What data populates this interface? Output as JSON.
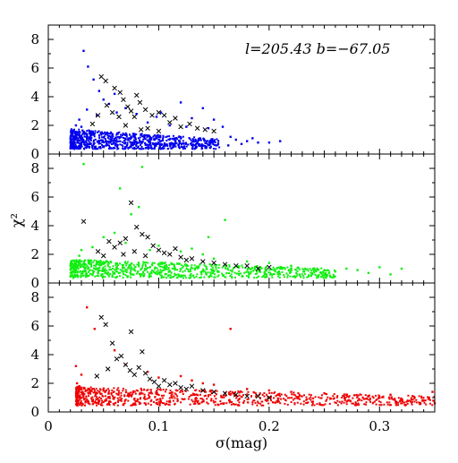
{
  "chart_data": {
    "type": "scatter",
    "layout": "three vertically stacked panels sharing the x axis",
    "annotation": "l=205.43  b=−67.05",
    "xlabel": "σ(mag)",
    "ylabel": "χ²",
    "xlim": [
      0,
      0.35
    ],
    "ylim": [
      0,
      9
    ],
    "xticks": [
      0,
      0.1,
      0.2,
      0.3
    ],
    "xtick_labels": [
      "0",
      "0.1",
      "0.2",
      "0.3"
    ],
    "yticks": [
      0,
      2,
      4,
      6,
      8
    ],
    "ytick_labels": [
      "0",
      "2",
      "4",
      "6",
      "8"
    ],
    "grid": false,
    "panels": [
      {
        "color": "#0000ee",
        "point_marker": "dot",
        "dense_band": {
          "x": [
            0.02,
            0.155
          ],
          "y": [
            0.2,
            1.6
          ]
        },
        "points": [
          [
            0.032,
            7.2
          ],
          [
            0.036,
            6.1
          ],
          [
            0.041,
            5.2
          ],
          [
            0.046,
            4.4
          ],
          [
            0.05,
            3.8
          ],
          [
            0.028,
            2.4
          ],
          [
            0.035,
            3.1
          ],
          [
            0.055,
            3.5
          ],
          [
            0.062,
            2.9
          ],
          [
            0.07,
            3.2
          ],
          [
            0.09,
            2.2
          ],
          [
            0.12,
            3.6
          ],
          [
            0.13,
            2.5
          ],
          [
            0.14,
            3.2
          ],
          [
            0.15,
            2.4
          ],
          [
            0.158,
            1.9
          ],
          [
            0.165,
            1.2
          ],
          [
            0.17,
            1.0
          ],
          [
            0.18,
            0.9
          ],
          [
            0.19,
            0.8
          ],
          [
            0.2,
            0.8
          ],
          [
            0.21,
            0.9
          ],
          [
            0.163,
            0.6
          ],
          [
            0.175,
            0.7
          ],
          [
            0.185,
            1.1
          ],
          [
            0.025,
            2.0
          ],
          [
            0.03,
            1.9
          ],
          [
            0.044,
            2.7
          ],
          [
            0.102,
            2.9
          ],
          [
            0.11,
            2.0
          ],
          [
            0.125,
            1.9
          ],
          [
            0.145,
            1.8
          ],
          [
            0.06,
            4.2
          ],
          [
            0.08,
            2.8
          ],
          [
            0.098,
            2.6
          ]
        ],
        "crosses": [
          [
            0.048,
            5.4
          ],
          [
            0.052,
            5.1
          ],
          [
            0.06,
            4.6
          ],
          [
            0.065,
            4.3
          ],
          [
            0.068,
            3.8
          ],
          [
            0.072,
            3.3
          ],
          [
            0.075,
            3.0
          ],
          [
            0.078,
            2.6
          ],
          [
            0.08,
            4.1
          ],
          [
            0.083,
            3.6
          ],
          [
            0.088,
            3.1
          ],
          [
            0.094,
            2.7
          ],
          [
            0.058,
            2.9
          ],
          [
            0.064,
            2.6
          ],
          [
            0.053,
            3.4
          ],
          [
            0.1,
            2.9
          ],
          [
            0.105,
            2.7
          ],
          [
            0.11,
            2.2
          ],
          [
            0.115,
            2.5
          ],
          [
            0.12,
            1.9
          ],
          [
            0.128,
            2.1
          ],
          [
            0.135,
            1.8
          ],
          [
            0.142,
            1.7
          ],
          [
            0.15,
            1.6
          ],
          [
            0.045,
            2.7
          ],
          [
            0.04,
            2.1
          ],
          [
            0.07,
            2.0
          ],
          [
            0.09,
            1.8
          ],
          [
            0.1,
            1.6
          ],
          [
            0.084,
            1.7
          ]
        ]
      },
      {
        "color": "#11ee11",
        "point_marker": "dot",
        "dense_band": {
          "x": [
            0.02,
            0.26
          ],
          "y": [
            0.2,
            1.5
          ]
        },
        "points": [
          [
            0.032,
            8.3
          ],
          [
            0.085,
            8.1
          ],
          [
            0.065,
            6.6
          ],
          [
            0.082,
            5.3
          ],
          [
            0.075,
            4.8
          ],
          [
            0.16,
            4.4
          ],
          [
            0.05,
            3.2
          ],
          [
            0.06,
            3.5
          ],
          [
            0.07,
            2.8
          ],
          [
            0.03,
            2.3
          ],
          [
            0.028,
            1.9
          ],
          [
            0.04,
            2.5
          ],
          [
            0.1,
            2.6
          ],
          [
            0.12,
            2.2
          ],
          [
            0.14,
            2.0
          ],
          [
            0.15,
            1.7
          ],
          [
            0.18,
            1.5
          ],
          [
            0.2,
            1.4
          ],
          [
            0.22,
            1.2
          ],
          [
            0.24,
            1.0
          ],
          [
            0.25,
            0.9
          ],
          [
            0.26,
            0.8
          ],
          [
            0.27,
            1.0
          ],
          [
            0.28,
            0.9
          ],
          [
            0.29,
            0.7
          ],
          [
            0.3,
            1.1
          ],
          [
            0.31,
            0.6
          ],
          [
            0.32,
            1.0
          ],
          [
            0.145,
            3.2
          ],
          [
            0.13,
            2.4
          ],
          [
            0.092,
            2.3
          ]
        ],
        "crosses": [
          [
            0.032,
            4.3
          ],
          [
            0.075,
            5.6
          ],
          [
            0.08,
            3.9
          ],
          [
            0.085,
            3.4
          ],
          [
            0.07,
            3.1
          ],
          [
            0.065,
            2.8
          ],
          [
            0.06,
            2.5
          ],
          [
            0.055,
            2.9
          ],
          [
            0.09,
            3.2
          ],
          [
            0.095,
            2.6
          ],
          [
            0.1,
            2.3
          ],
          [
            0.105,
            2.1
          ],
          [
            0.11,
            2.0
          ],
          [
            0.115,
            2.4
          ],
          [
            0.12,
            1.8
          ],
          [
            0.125,
            1.6
          ],
          [
            0.13,
            1.7
          ],
          [
            0.14,
            1.5
          ],
          [
            0.15,
            1.4
          ],
          [
            0.16,
            1.3
          ],
          [
            0.17,
            1.2
          ],
          [
            0.18,
            1.2
          ],
          [
            0.19,
            1.0
          ],
          [
            0.2,
            1.1
          ],
          [
            0.045,
            2.2
          ],
          [
            0.05,
            1.9
          ],
          [
            0.068,
            2.0
          ],
          [
            0.078,
            2.2
          ],
          [
            0.088,
            1.9
          ]
        ]
      },
      {
        "color": "#ee0000",
        "point_marker": "dot",
        "dense_band": {
          "x": [
            0.025,
            0.35
          ],
          "y": [
            0.3,
            1.6
          ]
        },
        "points": [
          [
            0.035,
            7.3
          ],
          [
            0.042,
            5.8
          ],
          [
            0.025,
            3.2
          ],
          [
            0.03,
            2.6
          ],
          [
            0.06,
            4.3
          ],
          [
            0.07,
            3.3
          ],
          [
            0.09,
            2.8
          ],
          [
            0.12,
            2.5
          ],
          [
            0.13,
            2.2
          ],
          [
            0.165,
            5.8
          ],
          [
            0.15,
            1.9
          ],
          [
            0.18,
            1.6
          ],
          [
            0.2,
            1.5
          ],
          [
            0.22,
            1.4
          ],
          [
            0.25,
            1.3
          ],
          [
            0.27,
            1.2
          ],
          [
            0.29,
            1.1
          ],
          [
            0.3,
            1.0
          ],
          [
            0.31,
            1.2
          ],
          [
            0.32,
            0.9
          ],
          [
            0.33,
            1.1
          ],
          [
            0.34,
            0.8
          ],
          [
            0.345,
            1.0
          ],
          [
            0.35,
            0.6
          ],
          [
            0.348,
            1.4
          ],
          [
            0.026,
            2.0
          ],
          [
            0.028,
            1.8
          ],
          [
            0.1,
            2.4
          ],
          [
            0.14,
            2.0
          ]
        ],
        "crosses": [
          [
            0.048,
            6.6
          ],
          [
            0.052,
            6.1
          ],
          [
            0.058,
            4.8
          ],
          [
            0.062,
            3.7
          ],
          [
            0.066,
            3.9
          ],
          [
            0.07,
            3.3
          ],
          [
            0.074,
            2.9
          ],
          [
            0.078,
            2.6
          ],
          [
            0.075,
            5.6
          ],
          [
            0.085,
            4.2
          ],
          [
            0.082,
            3.1
          ],
          [
            0.088,
            2.7
          ],
          [
            0.092,
            2.3
          ],
          [
            0.096,
            2.1
          ],
          [
            0.1,
            1.8
          ],
          [
            0.105,
            2.2
          ],
          [
            0.11,
            1.9
          ],
          [
            0.115,
            2.0
          ],
          [
            0.12,
            1.7
          ],
          [
            0.125,
            1.6
          ],
          [
            0.13,
            1.8
          ],
          [
            0.14,
            1.5
          ],
          [
            0.15,
            1.4
          ],
          [
            0.16,
            1.3
          ],
          [
            0.17,
            1.2
          ],
          [
            0.18,
            1.1
          ],
          [
            0.19,
            1.1
          ],
          [
            0.2,
            1.0
          ],
          [
            0.054,
            3.0
          ],
          [
            0.044,
            2.5
          ]
        ]
      }
    ]
  }
}
